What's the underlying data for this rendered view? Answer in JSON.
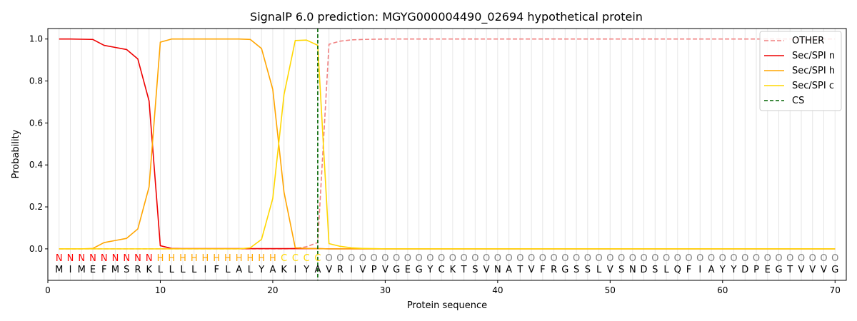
{
  "chart_data": {
    "type": "line",
    "title": "SignalP 6.0 prediction: MGYG000004490_02694 hypothetical protein",
    "xlabel": "Protein sequence",
    "ylabel": "Probability",
    "xlim": [
      0,
      71
    ],
    "ylim": [
      -0.15,
      1.05
    ],
    "xticks": [
      0,
      10,
      20,
      30,
      40,
      50,
      60,
      70
    ],
    "yticks": [
      0.0,
      0.2,
      0.4,
      0.6,
      0.8,
      1.0
    ],
    "ytick_labels": [
      "0.0",
      "0.2",
      "0.4",
      "0.6",
      "0.8",
      "1.0"
    ],
    "grid": "vertical lines at every position",
    "legend_position": "top-right",
    "sequence": [
      "M",
      "I",
      "M",
      "E",
      "F",
      "M",
      "S",
      "R",
      "K",
      "L",
      "L",
      "L",
      "L",
      "I",
      "F",
      "L",
      "A",
      "L",
      "Y",
      "A",
      "K",
      "I",
      "Y",
      "A",
      "V",
      "R",
      "I",
      "V",
      "P",
      "V",
      "G",
      "E",
      "G",
      "Y",
      "C",
      "K",
      "T",
      "S",
      "V",
      "N",
      "A",
      "T",
      "V",
      "F",
      "R",
      "G",
      "S",
      "S",
      "L",
      "V",
      "S",
      "N",
      "D",
      "S",
      "L",
      "Q",
      "F",
      "I",
      "A",
      "Y",
      "Y",
      "D",
      "P",
      "E",
      "G",
      "T",
      "V",
      "V",
      "V",
      "G"
    ],
    "region_labels": [
      "N",
      "N",
      "N",
      "N",
      "N",
      "N",
      "N",
      "N",
      "N",
      "H",
      "H",
      "H",
      "H",
      "H",
      "H",
      "H",
      "H",
      "H",
      "H",
      "H",
      "C",
      "C",
      "C",
      "C",
      "O",
      "O",
      "O",
      "O",
      "O",
      "O",
      "O",
      "O",
      "O",
      "O",
      "O",
      "O",
      "O",
      "O",
      "O",
      "O",
      "O",
      "O",
      "O",
      "O",
      "O",
      "O",
      "O",
      "O",
      "O",
      "O",
      "O",
      "O",
      "O",
      "O",
      "O",
      "O",
      "O",
      "O",
      "O",
      "O",
      "O",
      "O",
      "O",
      "O",
      "O",
      "O",
      "O",
      "O",
      "O",
      "O"
    ],
    "region_colors": {
      "N": "#ff0000",
      "H": "#ffa500",
      "C": "#ffd700",
      "O": "#808080"
    },
    "cleavage_site": 24,
    "series": [
      {
        "name": "OTHER",
        "color": "#f08080",
        "dash": true,
        "values": [
          0,
          0,
          0,
          0,
          0,
          0,
          0,
          0,
          0,
          0,
          0,
          0,
          0,
          0,
          0,
          0,
          0,
          0,
          0,
          0,
          0,
          0.002,
          0.01,
          0.03,
          0.975,
          0.99,
          0.996,
          0.998,
          0.999,
          1,
          1,
          1,
          1,
          1,
          1,
          1,
          1,
          1,
          1,
          1,
          1,
          1,
          1,
          1,
          1,
          1,
          1,
          1,
          1,
          1,
          1,
          1,
          1,
          1,
          1,
          1,
          1,
          1,
          1,
          1,
          1,
          1,
          1,
          1,
          1,
          1,
          1,
          1,
          1,
          1
        ]
      },
      {
        "name": "Sec/SPI n",
        "color": "#ee0000",
        "dash": false,
        "values": [
          1.0,
          1.0,
          0.999,
          0.998,
          0.97,
          0.96,
          0.95,
          0.905,
          0.705,
          0.015,
          0.002,
          0.001,
          0.001,
          0.001,
          0.001,
          0.001,
          0.001,
          0.001,
          0.001,
          0.001,
          0.001,
          0.001,
          0.001,
          0.001,
          0,
          0,
          0,
          0,
          0,
          0,
          0,
          0,
          0,
          0,
          0,
          0,
          0,
          0,
          0,
          0,
          0,
          0,
          0,
          0,
          0,
          0,
          0,
          0,
          0,
          0,
          0,
          0,
          0,
          0,
          0,
          0,
          0,
          0,
          0,
          0,
          0,
          0,
          0,
          0,
          0,
          0,
          0,
          0,
          0,
          0
        ]
      },
      {
        "name": "Sec/SPI h",
        "color": "#ffa500",
        "dash": false,
        "values": [
          0,
          0,
          0,
          0.002,
          0.03,
          0.04,
          0.05,
          0.095,
          0.295,
          0.985,
          1.0,
          1.0,
          1.0,
          1.0,
          1.0,
          1.0,
          1.0,
          0.998,
          0.955,
          0.76,
          0.27,
          0.005,
          0.002,
          0.001,
          0,
          0,
          0,
          0,
          0,
          0,
          0,
          0,
          0,
          0,
          0,
          0,
          0,
          0,
          0,
          0,
          0,
          0,
          0,
          0,
          0,
          0,
          0,
          0,
          0,
          0,
          0,
          0,
          0,
          0,
          0,
          0,
          0,
          0,
          0,
          0,
          0,
          0,
          0,
          0,
          0,
          0,
          0,
          0,
          0,
          0
        ]
      },
      {
        "name": "Sec/SPI c",
        "color": "#ffd700",
        "dash": false,
        "values": [
          0,
          0,
          0,
          0,
          0,
          0,
          0,
          0,
          0,
          0,
          0,
          0,
          0,
          0,
          0,
          0,
          0,
          0.005,
          0.045,
          0.24,
          0.735,
          0.993,
          0.995,
          0.97,
          0.025,
          0.012,
          0.005,
          0.002,
          0.001,
          0,
          0,
          0,
          0,
          0,
          0,
          0,
          0,
          0,
          0,
          0,
          0,
          0,
          0,
          0,
          0,
          0,
          0,
          0,
          0,
          0,
          0,
          0,
          0,
          0,
          0,
          0,
          0,
          0,
          0,
          0,
          0,
          0,
          0,
          0,
          0,
          0,
          0,
          0,
          0,
          0
        ]
      }
    ],
    "cs_legend": {
      "name": "CS",
      "color": "#006400"
    }
  }
}
